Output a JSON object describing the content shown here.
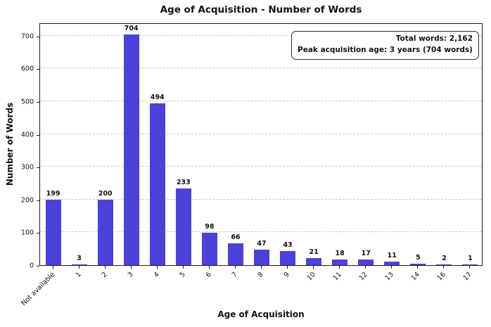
{
  "title": "Age of Acquisition - Number of Words",
  "chart_data": {
    "type": "bar",
    "categories": [
      "Not available",
      "1",
      "2",
      "3",
      "4",
      "5",
      "6",
      "7",
      "8",
      "9",
      "10",
      "11",
      "12",
      "13",
      "14",
      "16",
      "17"
    ],
    "values": [
      199,
      3,
      200,
      704,
      494,
      233,
      98,
      66,
      47,
      43,
      21,
      18,
      17,
      11,
      5,
      2,
      1
    ],
    "title": "Age of Acquisition - Number of Words",
    "xlabel": "Age of Acquisition",
    "ylabel": "Number of Words",
    "ylim": [
      0,
      740
    ],
    "ytick_step": 100,
    "ytick_max": 700,
    "grid": "horizontal-dashed",
    "legend": "none",
    "bar_labels_shown": true,
    "annotation": {
      "line1": "Total words: 2,162",
      "line2": "Peak acquisition age: 3 years (704 words)",
      "position": "top-right"
    }
  },
  "colors": {
    "bar": "#4B42DC",
    "grid": "#cccccc",
    "axis": "#1a1a1a",
    "text": "#111111",
    "background": "#ffffff"
  }
}
